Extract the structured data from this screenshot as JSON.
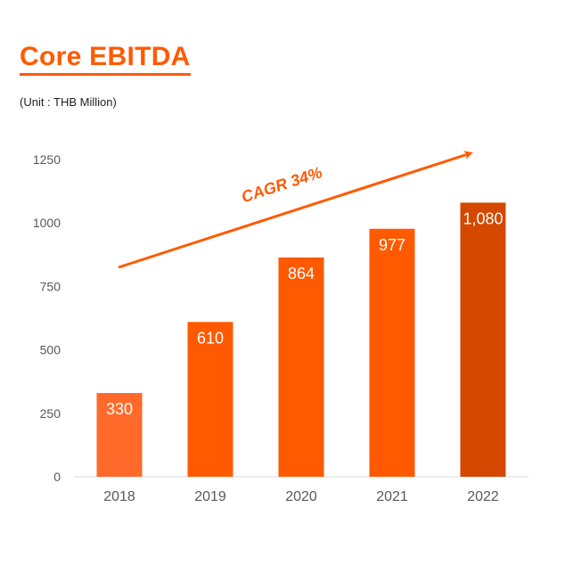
{
  "chart_data": {
    "type": "bar",
    "title": "Core EBITDA",
    "unit_note": "(Unit : THB Million)",
    "categories": [
      "2018",
      "2019",
      "2020",
      "2021",
      "2022"
    ],
    "values": [
      330,
      610,
      864,
      977,
      1080
    ],
    "data_labels": [
      "330",
      "610",
      "864",
      "977",
      "1,080"
    ],
    "bar_colors": [
      "#ff6a2b",
      "#ff5a00",
      "#ff5a00",
      "#ff5a00",
      "#d44800"
    ],
    "ylim": [
      0,
      1250
    ],
    "yticks": [
      0,
      250,
      500,
      750,
      1000,
      1250
    ],
    "grid": false,
    "annotation": {
      "text": "CAGR 34%",
      "color": "#ff5a00"
    }
  }
}
